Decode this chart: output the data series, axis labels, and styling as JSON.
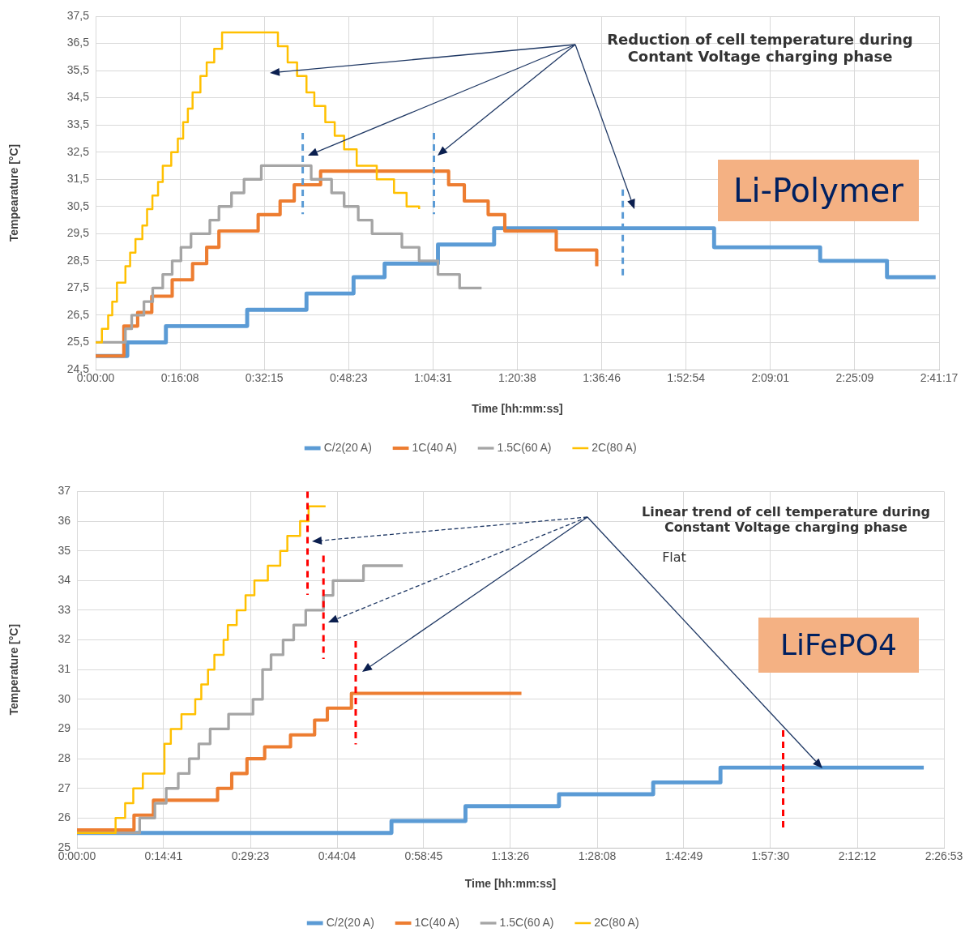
{
  "chart_data": [
    {
      "type": "step",
      "xlabel": "Time [hh:mm:ss]",
      "ylabel": "Tempearature [°C]",
      "annotations": [
        "Reduction of cell temperature during Contant Voltage charging phase",
        "Li-Polymer"
      ],
      "xlim": [
        0,
        2.68806
      ],
      "xticks": [
        {
          "value": 0,
          "label": "0:00:00"
        },
        {
          "value": 0.26889,
          "label": "0:16:08"
        },
        {
          "value": 0.5375,
          "label": "0:32:15"
        },
        {
          "value": 0.80639,
          "label": "0:48:23"
        },
        {
          "value": 1.07528,
          "label": "1:04:31"
        },
        {
          "value": 1.34389,
          "label": "1:20:38"
        },
        {
          "value": 1.61278,
          "label": "1:36:46"
        },
        {
          "value": 1.88167,
          "label": "1:52:54"
        },
        {
          "value": 2.15028,
          "label": "2:09:01"
        },
        {
          "value": 2.41917,
          "label": "2:25:09"
        },
        {
          "value": 2.68806,
          "label": "2:41:17"
        }
      ],
      "ylim": [
        24.5,
        37.5
      ],
      "yticks": [
        {
          "value": 24.5,
          "label": "24,5"
        },
        {
          "value": 25.5,
          "label": "25,5"
        },
        {
          "value": 26.5,
          "label": "26,5"
        },
        {
          "value": 27.5,
          "label": "27,5"
        },
        {
          "value": 28.5,
          "label": "28,5"
        },
        {
          "value": 29.5,
          "label": "29,5"
        },
        {
          "value": 30.5,
          "label": "30,5"
        },
        {
          "value": 31.5,
          "label": "31,5"
        },
        {
          "value": 32.5,
          "label": "32,5"
        },
        {
          "value": 33.5,
          "label": "33,5"
        },
        {
          "value": 34.5,
          "label": "34,5"
        },
        {
          "value": 35.5,
          "label": "35,5"
        },
        {
          "value": 36.5,
          "label": "36,5"
        },
        {
          "value": 37.5,
          "label": "37,5"
        }
      ],
      "grid": true,
      "legend": "bottom",
      "marker": "none",
      "line_style": "solid",
      "ref_lines": [
        {
          "axis": "x",
          "value": 0.66,
          "color": "#5b9bd5",
          "line_style": "dashed"
        },
        {
          "axis": "x",
          "value": 1.078,
          "color": "#5b9bd5",
          "line_style": "dashed"
        },
        {
          "axis": "x",
          "value": 1.68,
          "color": "#5b9bd5",
          "line_style": "dashed"
        }
      ],
      "series": [
        {
          "name": "C/2(20 A)",
          "color": "#5b9bd5",
          "x": [
            0,
            0.101,
            0.224,
            0.483,
            0.672,
            0.822,
            0.921,
            1.091,
            1.27,
            1.971,
            2.309,
            2.522,
            2.677
          ],
          "values": [
            25.0,
            25.5,
            26.1,
            26.7,
            27.3,
            27.9,
            28.4,
            29.1,
            29.7,
            29.0,
            28.5,
            27.9,
            27.9
          ]
        },
        {
          "name": "1C(40 A)",
          "color": "#ed7d31",
          "x": [
            0,
            0.09,
            0.134,
            0.179,
            0.244,
            0.309,
            0.354,
            0.393,
            0.518,
            0.588,
            0.633,
            0.717,
            1.125,
            1.175,
            1.251,
            1.304,
            1.468,
            1.597
          ],
          "values": [
            25.0,
            26.1,
            26.6,
            27.2,
            27.8,
            28.4,
            29.0,
            29.6,
            30.2,
            30.7,
            31.3,
            31.8,
            31.3,
            30.7,
            30.2,
            29.6,
            28.9,
            28.3
          ]
        },
        {
          "name": "1.5C(60 A)",
          "color": "#a5a5a5",
          "x": [
            0,
            0.095,
            0.115,
            0.154,
            0.182,
            0.214,
            0.244,
            0.272,
            0.304,
            0.364,
            0.393,
            0.433,
            0.473,
            0.528,
            0.687,
            0.752,
            0.792,
            0.837,
            0.881,
            0.976,
            1.031,
            1.091,
            1.16,
            1.23
          ],
          "values": [
            25.5,
            26.0,
            26.5,
            27.0,
            27.5,
            28.0,
            28.5,
            29.0,
            29.5,
            30.0,
            30.5,
            31.0,
            31.5,
            32.0,
            31.5,
            31.0,
            30.5,
            30.0,
            29.5,
            29.0,
            28.5,
            28.0,
            27.5,
            27.5
          ]
        },
        {
          "name": "2C(80 A)",
          "color": "#ffc000",
          "x": [
            0,
            0.02,
            0.04,
            0.053,
            0.068,
            0.095,
            0.11,
            0.127,
            0.149,
            0.164,
            0.181,
            0.199,
            0.214,
            0.241,
            0.262,
            0.279,
            0.294,
            0.309,
            0.334,
            0.354,
            0.378,
            0.403,
            0.581,
            0.612,
            0.642,
            0.672,
            0.697,
            0.732,
            0.762,
            0.792,
            0.832,
            0.896,
            0.951,
            0.991,
            1.031
          ],
          "values": [
            25.5,
            26.0,
            26.5,
            27.0,
            27.7,
            28.3,
            28.8,
            29.3,
            29.8,
            30.4,
            30.9,
            31.4,
            32.0,
            32.5,
            33.0,
            33.6,
            34.1,
            34.7,
            35.3,
            35.8,
            36.3,
            36.9,
            36.4,
            35.8,
            35.3,
            34.7,
            34.2,
            33.6,
            33.1,
            32.6,
            32.0,
            31.5,
            31.0,
            30.5,
            30.4
          ]
        }
      ]
    },
    {
      "type": "step",
      "xlabel": "Time [hh:mm:ss]",
      "ylabel": "Temperature [°C]",
      "annotations": [
        "Linear trend of cell temperature during Constant Voltage charging phase",
        "Flat",
        "LiFePO4"
      ],
      "xlim": [
        0,
        2.44806
      ],
      "xticks": [
        {
          "value": 0,
          "label": "0:00:00"
        },
        {
          "value": 0.24472,
          "label": "0:14:41"
        },
        {
          "value": 0.48972,
          "label": "0:29:23"
        },
        {
          "value": 0.73444,
          "label": "0:44:04"
        },
        {
          "value": 0.97917,
          "label": "0:58:45"
        },
        {
          "value": 1.22389,
          "label": "1:13:26"
        },
        {
          "value": 1.46889,
          "label": "1:28:08"
        },
        {
          "value": 1.71361,
          "label": "1:42:49"
        },
        {
          "value": 1.95833,
          "label": "1:57:30"
        },
        {
          "value": 2.20333,
          "label": "2:12:12"
        },
        {
          "value": 2.44806,
          "label": "2:26:53"
        }
      ],
      "ylim": [
        25,
        37
      ],
      "yticks": [
        25,
        26,
        27,
        28,
        29,
        30,
        31,
        32,
        33,
        34,
        35,
        36,
        37
      ],
      "grid": true,
      "legend": "bottom",
      "marker": "none",
      "line_style": "solid",
      "ref_lines": [
        {
          "axis": "x",
          "value": 0.651,
          "color": "#ff0000",
          "line_style": "dashed"
        },
        {
          "axis": "x",
          "value": 0.696,
          "color": "#ff0000",
          "line_style": "dashed"
        },
        {
          "axis": "x",
          "value": 0.787,
          "color": "#ff0000",
          "line_style": "dashed"
        },
        {
          "axis": "x",
          "value": 1.994,
          "color": "#ff0000",
          "line_style": "dashed"
        }
      ],
      "series": [
        {
          "name": "C/2(20 A)",
          "color": "#5b9bd5",
          "x": [
            0,
            0.888,
            1.097,
            1.361,
            1.627,
            1.817,
            2.391
          ],
          "values": [
            25.5,
            25.9,
            26.4,
            26.8,
            27.2,
            27.7,
            27.7
          ]
        },
        {
          "name": "1C(40 A)",
          "color": "#ed7d31",
          "x": [
            0,
            0.161,
            0.216,
            0.397,
            0.437,
            0.48,
            0.53,
            0.603,
            0.671,
            0.707,
            0.775,
            1.255
          ],
          "values": [
            25.6,
            26.1,
            26.6,
            27.0,
            27.5,
            28.0,
            28.4,
            28.8,
            29.3,
            29.7,
            30.2,
            30.2
          ]
        },
        {
          "name": "1.5C(60 A)",
          "color": "#a5a5a5",
          "x": [
            0,
            0.177,
            0.22,
            0.252,
            0.286,
            0.317,
            0.344,
            0.376,
            0.428,
            0.497,
            0.524,
            0.548,
            0.582,
            0.612,
            0.646,
            0.696,
            0.723,
            0.809,
            0.92
          ],
          "values": [
            25.5,
            26.0,
            26.5,
            27.0,
            27.5,
            28.0,
            28.5,
            29.0,
            29.5,
            30.0,
            31.0,
            31.5,
            32.0,
            32.5,
            33.0,
            33.5,
            34.0,
            34.5,
            34.5
          ]
        },
        {
          "name": "2C(80 A)",
          "color": "#ffc000",
          "x": [
            0,
            0.109,
            0.136,
            0.159,
            0.186,
            0.247,
            0.265,
            0.295,
            0.334,
            0.351,
            0.37,
            0.388,
            0.414,
            0.426,
            0.451,
            0.476,
            0.501,
            0.539,
            0.574,
            0.594,
            0.63,
            0.654,
            0.702
          ],
          "values": [
            25.5,
            26.0,
            26.5,
            27.0,
            27.5,
            28.5,
            29.0,
            29.5,
            30.0,
            30.5,
            31.0,
            31.5,
            32.0,
            32.5,
            33.0,
            33.5,
            34.0,
            34.5,
            35.0,
            35.5,
            36.0,
            36.5,
            36.5
          ]
        }
      ]
    }
  ]
}
